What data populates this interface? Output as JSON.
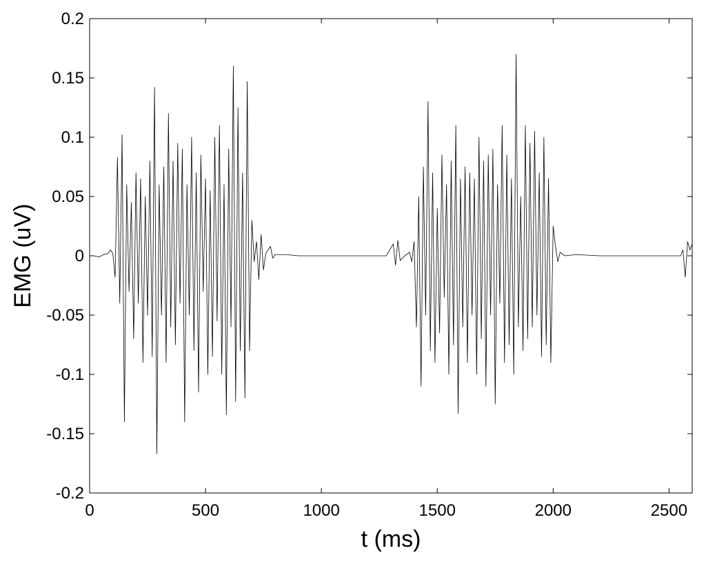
{
  "chart_data": {
    "type": "line",
    "xlabel": "t (ms)",
    "ylabel": "EMG (uV)",
    "color": "#000000",
    "x": [
      0,
      20,
      40,
      60,
      80,
      90,
      100,
      110,
      120,
      130,
      140,
      150,
      160,
      170,
      180,
      190,
      200,
      210,
      220,
      230,
      240,
      250,
      260,
      270,
      280,
      290,
      300,
      310,
      320,
      330,
      340,
      350,
      360,
      370,
      380,
      390,
      400,
      410,
      420,
      430,
      440,
      450,
      460,
      470,
      480,
      490,
      500,
      510,
      520,
      530,
      540,
      550,
      560,
      570,
      580,
      590,
      600,
      610,
      620,
      630,
      640,
      650,
      660,
      670,
      680,
      690,
      700,
      710,
      720,
      730,
      740,
      750,
      760,
      780,
      790,
      800,
      850,
      900,
      1000,
      1100,
      1200,
      1280,
      1310,
      1320,
      1330,
      1340,
      1360,
      1380,
      1390,
      1400,
      1410,
      1420,
      1430,
      1440,
      1450,
      1460,
      1470,
      1480,
      1490,
      1500,
      1510,
      1520,
      1530,
      1540,
      1550,
      1560,
      1570,
      1580,
      1590,
      1600,
      1610,
      1620,
      1630,
      1640,
      1650,
      1660,
      1670,
      1680,
      1690,
      1700,
      1710,
      1720,
      1730,
      1740,
      1750,
      1760,
      1770,
      1780,
      1790,
      1800,
      1810,
      1820,
      1830,
      1840,
      1850,
      1860,
      1870,
      1880,
      1890,
      1900,
      1910,
      1920,
      1930,
      1940,
      1950,
      1960,
      1970,
      1980,
      1990,
      2000,
      2010,
      2020,
      2030,
      2050,
      2100,
      2200,
      2300,
      2400,
      2500,
      2550,
      2560,
      2570,
      2580,
      2590,
      2600
    ],
    "values": [
      0,
      0,
      -0.001,
      0.001,
      0.002,
      0.005,
      0.002,
      -0.018,
      0.083,
      -0.04,
      0.102,
      -0.14,
      0.06,
      -0.03,
      0.045,
      -0.07,
      0.07,
      -0.04,
      0.065,
      -0.09,
      0.05,
      -0.05,
      0.08,
      -0.085,
      0.142,
      -0.167,
      0.06,
      -0.05,
      0.075,
      -0.09,
      0.12,
      -0.06,
      0.08,
      -0.075,
      0.095,
      -0.04,
      0.09,
      -0.14,
      0.06,
      -0.05,
      0.1,
      -0.08,
      0.07,
      -0.115,
      0.085,
      -0.03,
      0.065,
      -0.1,
      0.055,
      -0.085,
      0.1,
      -0.055,
      0.11,
      -0.1,
      0.06,
      -0.134,
      0.09,
      -0.06,
      0.16,
      -0.123,
      0.125,
      -0.08,
      0.07,
      -0.12,
      0.147,
      -0.08,
      0.03,
      -0.005,
      0.012,
      -0.02,
      0.018,
      -0.012,
      0.002,
      0.008,
      -0.002,
      0.001,
      0.001,
      0,
      0,
      0,
      0,
      0,
      0.01,
      -0.008,
      0.013,
      -0.004,
      0,
      0.003,
      -0.005,
      0.012,
      -0.06,
      0.05,
      -0.11,
      0.075,
      -0.05,
      0.13,
      -0.08,
      0.07,
      -0.09,
      0.04,
      -0.065,
      0.085,
      -0.035,
      0.06,
      -0.1,
      0.08,
      -0.075,
      0.11,
      -0.133,
      0.065,
      -0.06,
      0.075,
      -0.09,
      0.07,
      -0.05,
      0.065,
      -0.1,
      0.1,
      -0.07,
      0.08,
      -0.11,
      0.085,
      -0.05,
      0.09,
      -0.125,
      0.06,
      -0.04,
      0.11,
      -0.09,
      0.085,
      -0.075,
      0.065,
      -0.1,
      0.17,
      -0.06,
      0.05,
      -0.08,
      0.11,
      -0.07,
      0.095,
      -0.06,
      0.105,
      -0.05,
      0.07,
      -0.085,
      0.1,
      -0.075,
      0.065,
      -0.09,
      0.025,
      0.008,
      -0.005,
      0.003,
      0,
      0.001,
      0,
      0,
      0,
      0,
      0,
      0.005,
      -0.018,
      0.012,
      0.005,
      0.01
    ],
    "xlim": [
      0,
      2600
    ],
    "xticks": [
      0,
      500,
      1000,
      1500,
      2000,
      2500
    ],
    "ylim": [
      -0.2,
      0.2
    ],
    "yticks": [
      -0.2,
      -0.15,
      -0.1,
      -0.05,
      0,
      0.05,
      0.1,
      0.15,
      0.2
    ]
  }
}
